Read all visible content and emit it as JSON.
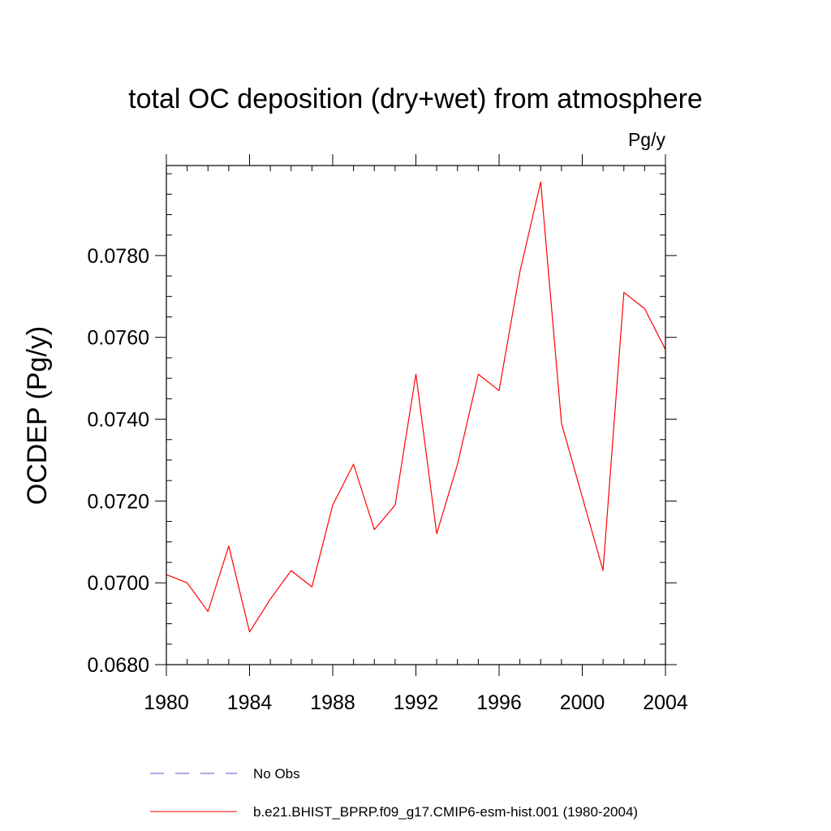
{
  "chart_data": {
    "type": "line",
    "title": "total OC deposition (dry+wet) from atmosphere",
    "units": "Pg/y",
    "ylabel": "OCDEP  (Pg/y)",
    "xlabel": "",
    "xlim": [
      1980,
      2004
    ],
    "ylim": [
      0.068,
      0.0802
    ],
    "x_ticks": [
      1980,
      1984,
      1988,
      1992,
      1996,
      2000,
      2004
    ],
    "x_tick_labels": [
      "1980",
      "1984",
      "1988",
      "1992",
      "1996",
      "2000",
      "2004"
    ],
    "y_ticks": [
      0.068,
      0.07,
      0.072,
      0.074,
      0.076,
      0.078
    ],
    "y_tick_labels": [
      "0.0680",
      "0.0700",
      "0.0720",
      "0.0740",
      "0.0760",
      "0.0780"
    ],
    "x_minor_step": 1,
    "y_minor_step": 0.0005,
    "series": [
      {
        "name": "b.e21.BHIST_BPRP.f09_g17.CMIP6-esm-hist.001 (1980-2004)",
        "color": "#ff0000",
        "style": "solid",
        "x": [
          1980,
          1981,
          1982,
          1983,
          1984,
          1985,
          1986,
          1987,
          1988,
          1989,
          1990,
          1991,
          1992,
          1993,
          1994,
          1995,
          1996,
          1997,
          1998,
          1999,
          2000,
          2001,
          2002,
          2003,
          2004
        ],
        "values": [
          0.0702,
          0.07,
          0.0693,
          0.0709,
          0.0688,
          0.0696,
          0.0703,
          0.0699,
          0.0719,
          0.0729,
          0.0713,
          0.0719,
          0.0751,
          0.0712,
          0.0729,
          0.0751,
          0.0747,
          0.0776,
          0.0798,
          0.0739,
          0.0721,
          0.0703,
          0.0771,
          0.0767,
          0.0757
        ]
      }
    ],
    "legend": [
      {
        "label": "No Obs",
        "color": "#5555cc",
        "style": "dashed"
      },
      {
        "label": "b.e21.BHIST_BPRP.f09_g17.CMIP6-esm-hist.001 (1980-2004)",
        "color": "#ff0000",
        "style": "solid"
      }
    ]
  }
}
